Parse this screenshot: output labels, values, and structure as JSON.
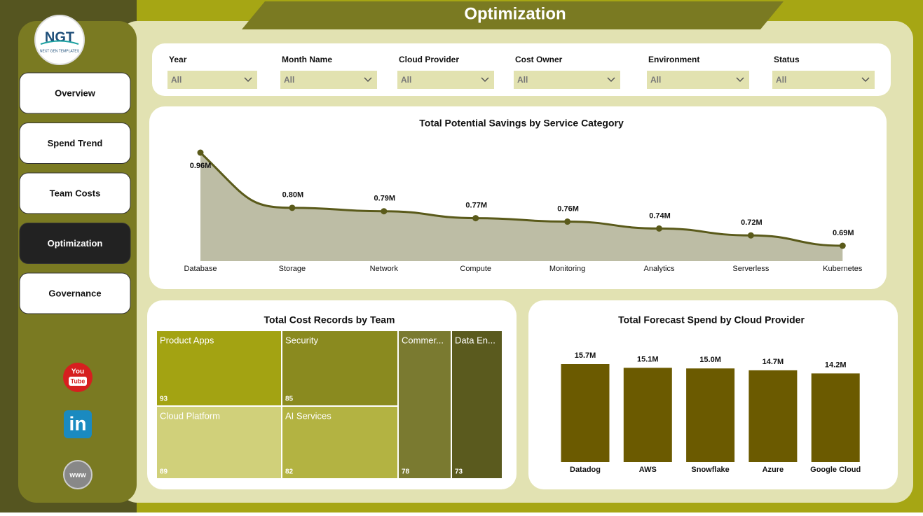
{
  "title": "Optimization",
  "logo": {
    "name": "NGT",
    "tagline": "NEXT GEN TEMPLATES"
  },
  "nav": [
    "Overview",
    "Spend Trend",
    "Team Costs",
    "Optimization",
    "Governance"
  ],
  "active_nav": 3,
  "social": {
    "youtube": [
      "You",
      "Tube"
    ],
    "linkedin": "in",
    "web": "www"
  },
  "filters": [
    {
      "label": "Year",
      "value": "All"
    },
    {
      "label": "Month Name",
      "value": "All"
    },
    {
      "label": "Cloud Provider",
      "value": "All"
    },
    {
      "label": "Cost Owner",
      "value": "All"
    },
    {
      "label": "Environment",
      "value": "All"
    },
    {
      "label": "Status",
      "value": "All"
    }
  ],
  "chart_data": [
    {
      "type": "area",
      "title": "Total Potential Savings by Service Category",
      "categories": [
        "Database",
        "Storage",
        "Network",
        "Compute",
        "Monitoring",
        "Analytics",
        "Serverless",
        "Kubernetes"
      ],
      "values": [
        0.96,
        0.8,
        0.79,
        0.77,
        0.76,
        0.74,
        0.72,
        0.69
      ],
      "value_labels": [
        "0.96M",
        "0.80M",
        "0.79M",
        "0.77M",
        "0.76M",
        "0.74M",
        "0.72M",
        "0.69M"
      ],
      "color": "#5a5a1a",
      "fill": "#bdbda5"
    },
    {
      "type": "treemap",
      "title": "Total Cost Records by Team",
      "categories": [
        "Product Apps",
        "Security",
        "Cloud Platform",
        "AI Services",
        "Commer...",
        "Data En..."
      ],
      "values": [
        93,
        85,
        89,
        82,
        78,
        73
      ],
      "colors": [
        "#a3a312",
        "#8a8a1f",
        "#d0d07a",
        "#b3b342",
        "#7a7a30",
        "#5a5a1e"
      ]
    },
    {
      "type": "bar",
      "title": "Total Forecast Spend by Cloud Provider",
      "categories": [
        "Datadog",
        "AWS",
        "Snowflake",
        "Azure",
        "Google Cloud"
      ],
      "values": [
        15.7,
        15.1,
        15.0,
        14.7,
        14.2
      ],
      "value_labels": [
        "15.7M",
        "15.1M",
        "15.0M",
        "14.7M",
        "14.2M"
      ],
      "color": "#6b5a00"
    }
  ]
}
